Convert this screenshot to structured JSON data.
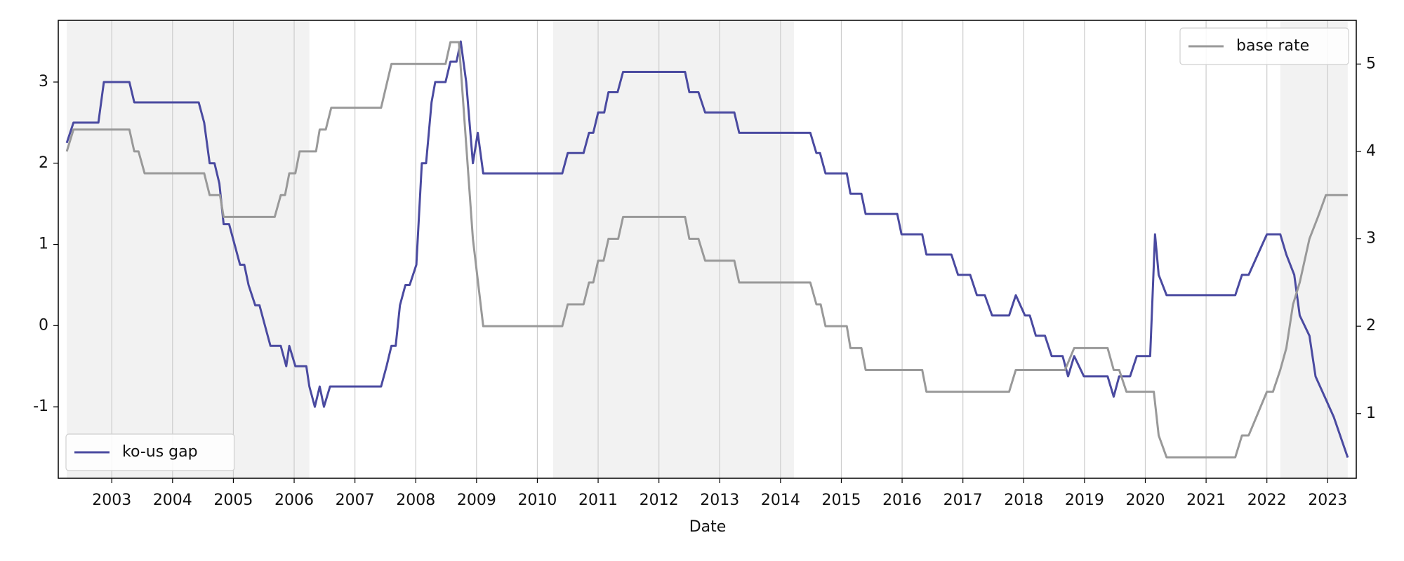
{
  "chart_data": {
    "type": "line",
    "x_label": "Date",
    "xlim": [
      2002.12,
      2023.47
    ],
    "xticks": [
      2003,
      2004,
      2005,
      2006,
      2007,
      2008,
      2009,
      2010,
      2011,
      2012,
      2013,
      2014,
      2015,
      2016,
      2017,
      2018,
      2019,
      2020,
      2021,
      2022,
      2023
    ],
    "ylim": [
      -1.88,
      3.76
    ],
    "yticks": [
      -1,
      0,
      1,
      2,
      3
    ],
    "y2lim": [
      0.26,
      5.5
    ],
    "y2ticks": [
      1,
      2,
      3,
      4,
      5
    ],
    "grid": "x",
    "shaded_spans": [
      [
        2002.26,
        2006.25
      ],
      [
        2010.26,
        2014.22
      ],
      [
        2022.22,
        2023.33
      ]
    ],
    "series": [
      {
        "name": "ko-us gap",
        "color": "#4a4aa0",
        "axis": "y",
        "legend_loc": "lower left",
        "x": [
          2002.26,
          2002.37,
          2002.78,
          2002.87,
          2003.29,
          2003.37,
          2004.43,
          2004.52,
          2004.61,
          2004.69,
          2004.77,
          2004.84,
          2004.93,
          2005.02,
          2005.11,
          2005.18,
          2005.25,
          2005.36,
          2005.43,
          2005.52,
          2005.61,
          2005.78,
          2005.87,
          2005.92,
          2006.02,
          2006.2,
          2006.25,
          2006.34,
          2006.42,
          2006.49,
          2006.59,
          2007.43,
          2007.52,
          2007.6,
          2007.67,
          2007.74,
          2007.83,
          2007.9,
          2008.01,
          2008.1,
          2008.17,
          2008.26,
          2008.32,
          2008.49,
          2008.57,
          2008.67,
          2008.74,
          2008.83,
          2008.94,
          2009.02,
          2009.11,
          2010.41,
          2010.5,
          2010.76,
          2010.85,
          2010.92,
          2011.0,
          2011.1,
          2011.17,
          2011.32,
          2011.41,
          2012.43,
          2012.5,
          2012.65,
          2012.76,
          2013.24,
          2013.32,
          2014.49,
          2014.59,
          2014.65,
          2014.74,
          2015.09,
          2015.15,
          2015.33,
          2015.4,
          2015.92,
          2015.99,
          2016.33,
          2016.4,
          2016.81,
          2016.92,
          2017.12,
          2017.23,
          2017.36,
          2017.48,
          2017.76,
          2017.87,
          2018.02,
          2018.1,
          2018.2,
          2018.35,
          2018.46,
          2018.64,
          2018.73,
          2018.83,
          2018.99,
          2019.38,
          2019.48,
          2019.57,
          2019.75,
          2019.86,
          2020.08,
          2020.16,
          2020.22,
          2020.35,
          2021.48,
          2021.59,
          2021.7,
          2021.85,
          2022.0,
          2022.22,
          2022.32,
          2022.45,
          2022.54,
          2022.7,
          2022.8,
          2022.95,
          2023.1,
          2023.33
        ],
        "values": [
          2.25,
          2.5,
          2.5,
          3.0,
          3.0,
          2.75,
          2.75,
          2.5,
          2.0,
          2.0,
          1.75,
          1.25,
          1.25,
          1.0,
          0.75,
          0.75,
          0.5,
          0.25,
          0.25,
          0,
          -0.25,
          -0.25,
          -0.5,
          -0.25,
          -0.5,
          -0.5,
          -0.75,
          -1.0,
          -0.75,
          -1.0,
          -0.75,
          -0.75,
          -0.5,
          -0.25,
          -0.25,
          0.25,
          0.5,
          0.5,
          0.75,
          2.0,
          2.0,
          2.75,
          3.0,
          3.0,
          3.25,
          3.25,
          3.5,
          3.0,
          2.0,
          2.375,
          1.875,
          1.875,
          2.125,
          2.125,
          2.375,
          2.375,
          2.625,
          2.625,
          2.875,
          2.875,
          3.125,
          3.125,
          2.875,
          2.875,
          2.625,
          2.625,
          2.375,
          2.375,
          2.125,
          2.125,
          1.875,
          1.875,
          1.625,
          1.625,
          1.375,
          1.375,
          1.125,
          1.125,
          0.875,
          0.875,
          0.625,
          0.625,
          0.375,
          0.375,
          0.125,
          0.125,
          0.375,
          0.125,
          0.125,
          -0.125,
          -0.125,
          -0.375,
          -0.375,
          -0.625,
          -0.375,
          -0.625,
          -0.625,
          -0.875,
          -0.625,
          -0.625,
          -0.375,
          -0.375,
          1.125,
          0.625,
          0.375,
          0.375,
          0.625,
          0.625,
          0.875,
          1.125,
          1.125,
          0.875,
          0.625,
          0.125,
          -0.125,
          -0.625,
          -0.875,
          -1.125,
          -1.625
        ]
      },
      {
        "name": "base rate",
        "color": "#999999",
        "axis": "y2",
        "legend_loc": "upper right",
        "x": [
          2002.26,
          2002.37,
          2003.29,
          2003.37,
          2003.44,
          2003.54,
          2004.52,
          2004.61,
          2004.78,
          2004.84,
          2005.68,
          2005.78,
          2005.85,
          2005.92,
          2006.02,
          2006.09,
          2006.36,
          2006.42,
          2006.52,
          2006.61,
          2007.43,
          2007.6,
          2008.49,
          2008.57,
          2008.71,
          2008.94,
          2009.11,
          2010.41,
          2010.5,
          2010.76,
          2010.85,
          2010.92,
          2011.0,
          2011.09,
          2011.17,
          2011.33,
          2011.41,
          2012.43,
          2012.5,
          2012.65,
          2012.76,
          2013.24,
          2013.32,
          2014.49,
          2014.59,
          2014.66,
          2014.74,
          2015.09,
          2015.15,
          2015.33,
          2015.4,
          2016.33,
          2016.4,
          2017.76,
          2017.87,
          2018.68,
          2018.83,
          2019.38,
          2019.48,
          2019.57,
          2019.69,
          2020.14,
          2020.22,
          2020.35,
          2021.48,
          2021.59,
          2021.7,
          2021.85,
          2022.0,
          2022.1,
          2022.22,
          2022.32,
          2022.43,
          2022.54,
          2022.7,
          2022.84,
          2022.97,
          2023.33
        ],
        "values": [
          4.0,
          4.25,
          4.25,
          4.0,
          4.0,
          3.75,
          3.75,
          3.5,
          3.5,
          3.25,
          3.25,
          3.5,
          3.5,
          3.75,
          3.75,
          4.0,
          4.0,
          4.25,
          4.25,
          4.5,
          4.5,
          5.0,
          5.0,
          5.25,
          5.25,
          3.0,
          2.0,
          2.0,
          2.25,
          2.25,
          2.5,
          2.5,
          2.75,
          2.75,
          3.0,
          3.0,
          3.25,
          3.25,
          3.0,
          3.0,
          2.75,
          2.75,
          2.5,
          2.5,
          2.25,
          2.25,
          2.0,
          2.0,
          1.75,
          1.75,
          1.5,
          1.5,
          1.25,
          1.25,
          1.5,
          1.5,
          1.75,
          1.75,
          1.5,
          1.5,
          1.25,
          1.25,
          0.75,
          0.5,
          0.5,
          0.75,
          0.75,
          1.0,
          1.25,
          1.25,
          1.5,
          1.75,
          2.25,
          2.5,
          3.0,
          3.25,
          3.5,
          3.5
        ]
      }
    ]
  }
}
